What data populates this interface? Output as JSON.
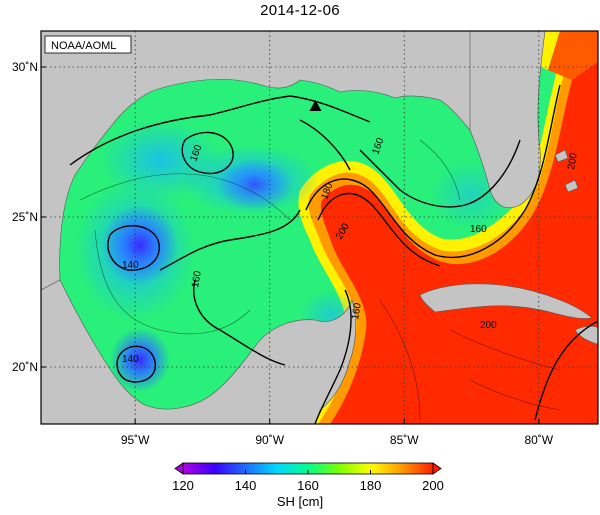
{
  "title": "2014-12-06",
  "credit": "NOAA/AOML",
  "map": {
    "region": "Gulf of Mexico",
    "lon_range": [
      -98.5,
      -77.8
    ],
    "lat_range": [
      18.1,
      31.2
    ],
    "lon_ticks": [
      {
        "value": -95,
        "label": "95˚W"
      },
      {
        "value": -90,
        "label": "90˚W"
      },
      {
        "value": -85,
        "label": "85˚W"
      },
      {
        "value": -80,
        "label": "80˚W"
      }
    ],
    "lat_ticks": [
      {
        "value": 30,
        "label": "30˚N"
      },
      {
        "value": 25,
        "label": "25˚N"
      },
      {
        "value": 20,
        "label": "20˚N"
      }
    ],
    "land_color": "#c4c4c4",
    "grid": "dotted",
    "contour_labels": [
      "160",
      "140",
      "140",
      "160",
      "160",
      "180",
      "200",
      "160",
      "160",
      "200",
      "200"
    ],
    "marker": {
      "type": "triangle",
      "lon": -88.3,
      "lat": 28.7
    }
  },
  "colorbar": {
    "label": "SH [cm]",
    "min": 120,
    "max": 200,
    "tick_labels": [
      "120",
      "140",
      "160",
      "180",
      "200"
    ],
    "colors": [
      "#b000e0",
      "#3a00ff",
      "#1f6dff",
      "#00d8ff",
      "#00ff90",
      "#7dff00",
      "#ffff00",
      "#ff9a00",
      "#ff1e00"
    ]
  }
}
